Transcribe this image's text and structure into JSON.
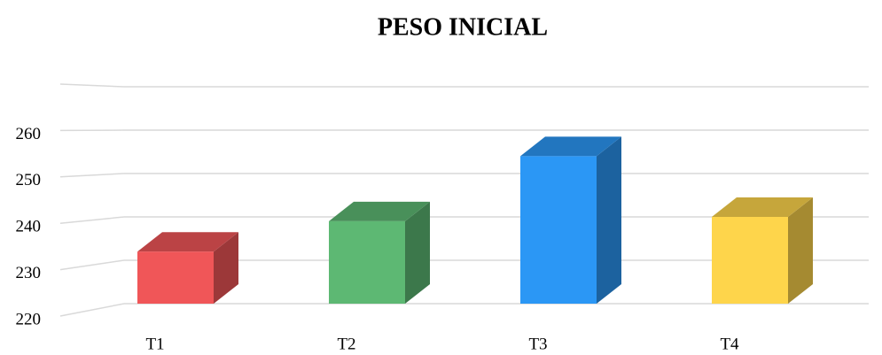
{
  "chart_data": {
    "type": "bar3d",
    "title": "PESO INICIAL",
    "categories": [
      "T1",
      "T2",
      "T3",
      "T4"
    ],
    "values": [
      232,
      239,
      254,
      240
    ],
    "colors": [
      "#f05658",
      "#5db873",
      "#2b97f5",
      "#fed54b"
    ],
    "ylim": [
      220,
      270
    ],
    "yticks": [
      220,
      230,
      240,
      250,
      260
    ],
    "grid": true
  }
}
